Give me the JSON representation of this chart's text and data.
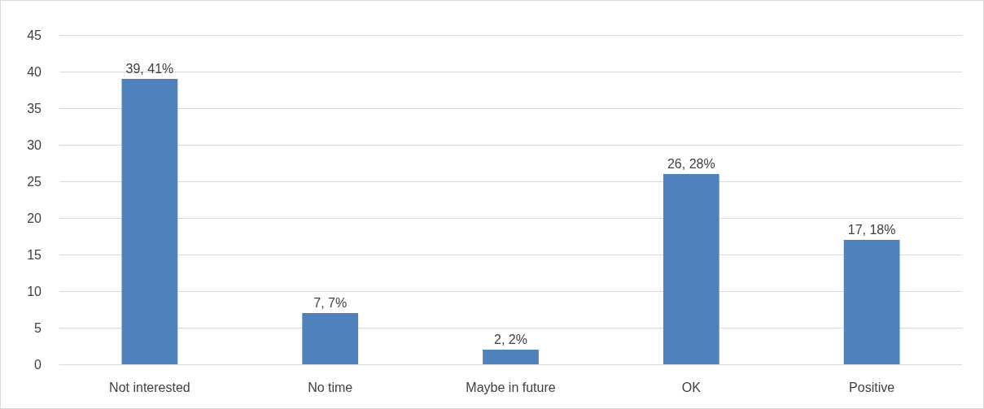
{
  "chart_data": {
    "type": "bar",
    "categories": [
      "Not interested",
      "No time",
      "Maybe in future",
      "OK",
      "Positive"
    ],
    "values": [
      39,
      7,
      2,
      26,
      17
    ],
    "color": "#4f81bd",
    "value_labels": [
      "39, 41%",
      "7, 7%",
      "2, 2%",
      "26, 28%",
      "17, 18%"
    ],
    "ylim": [
      0,
      45
    ],
    "yticks": [
      0,
      5,
      10,
      15,
      20,
      25,
      30,
      35,
      40,
      45
    ],
    "grid": "y"
  }
}
